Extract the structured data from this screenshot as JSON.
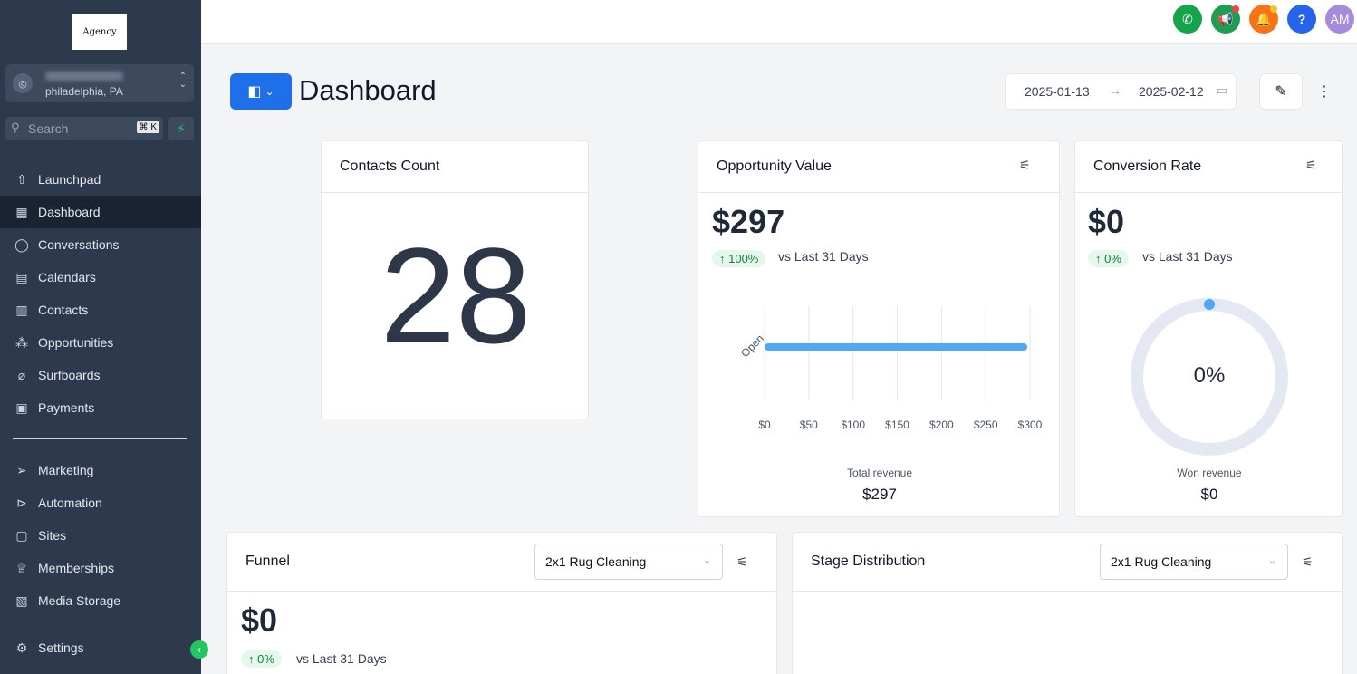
{
  "sidebar": {
    "logo_text": "Agency",
    "location_city": "philadelphia, PA",
    "search_placeholder": "Search",
    "search_shortcut": "⌘ K",
    "items_top": [
      {
        "label": "Launchpad",
        "icon": "rocket-icon"
      },
      {
        "label": "Dashboard",
        "icon": "grid-icon",
        "active": true
      },
      {
        "label": "Conversations",
        "icon": "chat-icon"
      },
      {
        "label": "Calendars",
        "icon": "calendar-icon"
      },
      {
        "label": "Contacts",
        "icon": "contacts-icon"
      },
      {
        "label": "Opportunities",
        "icon": "funnel-icon"
      },
      {
        "label": "Surfboards",
        "icon": "surfboard-icon"
      },
      {
        "label": "Payments",
        "icon": "receipt-icon"
      }
    ],
    "items_bottom": [
      {
        "label": "Marketing",
        "icon": "send-icon"
      },
      {
        "label": "Automation",
        "icon": "automation-icon"
      },
      {
        "label": "Sites",
        "icon": "sites-icon"
      },
      {
        "label": "Memberships",
        "icon": "membership-icon"
      },
      {
        "label": "Media Storage",
        "icon": "image-icon"
      }
    ],
    "settings_label": "Settings"
  },
  "topbar": {
    "avatar_initials": "AM",
    "buttons": [
      {
        "name": "phone",
        "color": "#16a34a"
      },
      {
        "name": "announcements",
        "color": "#1f9d55"
      },
      {
        "name": "notifications",
        "color": "#f97316"
      },
      {
        "name": "help",
        "color": "#2563eb"
      },
      {
        "name": "avatar",
        "color": "#a78bdb"
      }
    ]
  },
  "header": {
    "title": "Dashboard",
    "date_start": "2025-01-13",
    "date_end": "2025-02-12"
  },
  "contacts_card": {
    "title": "Contacts Count",
    "value": "28"
  },
  "opportunity_card": {
    "title": "Opportunity Value",
    "value": "$297",
    "change": "↑ 100%",
    "vs_label": "vs Last 31 Days",
    "footer_label": "Total revenue",
    "footer_value": "$297"
  },
  "conversion_card": {
    "title": "Conversion Rate",
    "value": "$0",
    "change": "↑ 0%",
    "vs_label": "vs Last 31 Days",
    "gauge_text": "0%",
    "gauge_fraction": 0,
    "footer_label": "Won revenue",
    "footer_value": "$0"
  },
  "funnel_card": {
    "title": "Funnel",
    "select_value": "2x1 Rug Cleaning",
    "value": "$0",
    "change": "↑ 0%",
    "vs_label": "vs Last 31 Days"
  },
  "stage_card": {
    "title": "Stage Distribution",
    "select_value": "2x1 Rug Cleaning"
  },
  "chart_data": {
    "type": "bar",
    "orientation": "horizontal",
    "categories": [
      "Open"
    ],
    "values": [
      297
    ],
    "xlim": [
      0,
      300
    ],
    "xticks": [
      "$0",
      "$50",
      "$100",
      "$150",
      "$200",
      "$250",
      "$300"
    ],
    "grid": true,
    "bar_color": "#4fa8f7"
  }
}
